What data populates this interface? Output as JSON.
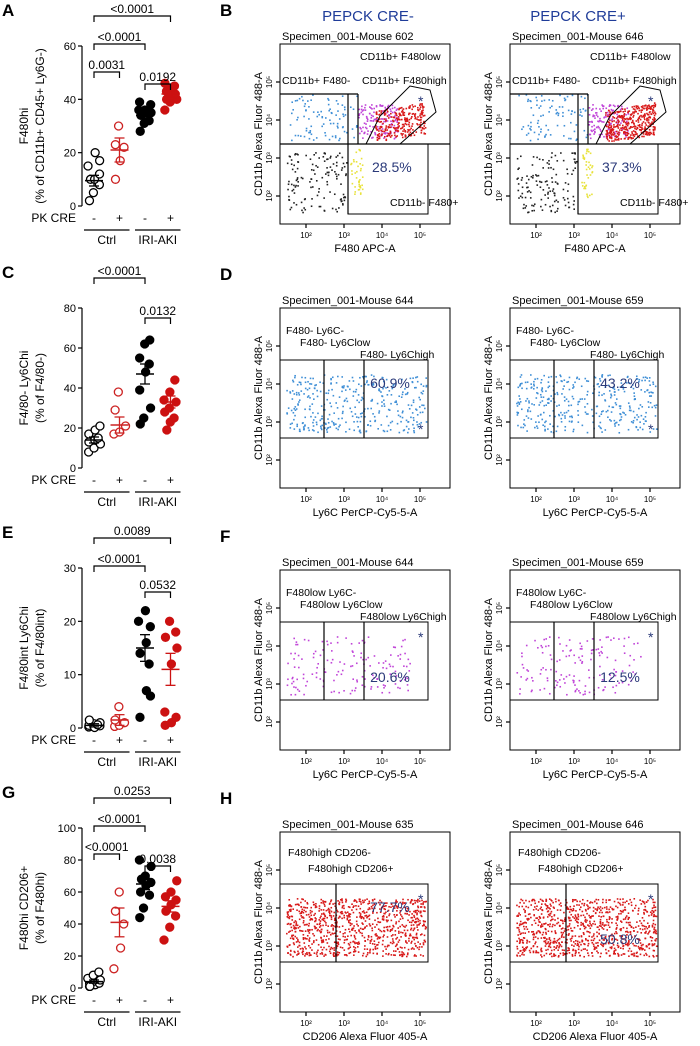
{
  "chart_data": [
    {
      "type": "scatter",
      "panel": "A",
      "ylabel_line1": "F480hi",
      "ylabel_line2": "(% of CD11b+ CD45+ Ly6G-)",
      "ylim": [
        0,
        60
      ],
      "yticks": [
        "0",
        "20",
        "40",
        "60"
      ],
      "yticks_values": [
        0,
        20,
        40,
        60
      ],
      "row_label": "PK CRE",
      "signs": [
        "-",
        "+",
        "-",
        "+"
      ],
      "groups": [
        "Ctrl",
        "IRI-AKI"
      ],
      "brackets": [
        {
          "from": 0,
          "to": 3,
          "label": "<0.0001"
        },
        {
          "from": 0,
          "to": 2,
          "label": "<0.0001"
        },
        {
          "from": 0,
          "to": 1,
          "label": "0.0031"
        },
        {
          "from": 2,
          "to": 3,
          "label": "0.0192"
        }
      ],
      "series": [
        {
          "values": [
            2,
            5,
            8,
            10,
            10,
            12,
            15,
            20,
            17
          ],
          "mean": 9.5,
          "sem": 2
        },
        {
          "values": [
            10,
            17,
            22,
            23,
            30
          ],
          "mean": 21,
          "sem": 4.5
        },
        {
          "values": [
            28,
            31,
            32,
            34,
            35,
            35,
            36,
            36,
            38,
            39
          ],
          "mean": 34,
          "sem": 1.2
        },
        {
          "values": [
            36,
            39,
            40,
            40,
            41,
            42,
            43,
            44,
            45,
            46
          ],
          "mean": 42,
          "sem": 1
        }
      ]
    },
    {
      "type": "scatter",
      "panel": "C",
      "ylabel_line1": "F4/80- Ly6Chi",
      "ylabel_line2": "(% of F4/80-)",
      "ylim": [
        0,
        80
      ],
      "yticks": [
        "0",
        "20",
        "40",
        "60",
        "80"
      ],
      "yticks_values": [
        0,
        20,
        40,
        60,
        80
      ],
      "row_label": "PK CRE",
      "signs": [
        "-",
        "+",
        "-",
        "+"
      ],
      "groups": [
        "Ctrl",
        "IRI-AKI"
      ],
      "brackets": [
        {
          "from": 0,
          "to": 2,
          "label": "<0.0001"
        },
        {
          "from": 2,
          "to": 3,
          "label": "0.0132"
        }
      ],
      "series": [
        {
          "values": [
            8,
            10,
            12,
            13,
            14,
            15,
            17,
            19,
            21
          ],
          "mean": 14,
          "sem": 1.5
        },
        {
          "values": [
            17,
            18,
            21,
            29,
            38
          ],
          "mean": 21.5,
          "sem": 4
        },
        {
          "values": [
            22,
            25,
            30,
            39,
            48,
            52,
            55,
            62,
            64
          ],
          "mean": 47,
          "sem": 5
        },
        {
          "values": [
            19,
            23,
            25,
            28,
            30,
            33,
            34,
            38,
            44
          ],
          "mean": 33,
          "sem": 3
        }
      ]
    },
    {
      "type": "scatter",
      "panel": "E",
      "ylabel_line1": "F4/80int Ly6Chi",
      "ylabel_line2": "(% of F4/80int)",
      "ylim": [
        0,
        30
      ],
      "yticks": [
        "0",
        "10",
        "20",
        "30"
      ],
      "yticks_values": [
        0,
        10,
        20,
        30
      ],
      "row_label": "PK CRE",
      "signs": [
        "-",
        "+",
        "-",
        "+"
      ],
      "groups": [
        "Ctrl",
        "IRI-AKI"
      ],
      "brackets": [
        {
          "from": 0,
          "to": 3,
          "label": "0.0089"
        },
        {
          "from": 0,
          "to": 2,
          "label": "<0.0001"
        },
        {
          "from": 2,
          "to": 3,
          "label": "0.0532"
        }
      ],
      "series": [
        {
          "values": [
            0.2,
            0.3,
            0.4,
            0.5,
            0.8,
            1,
            1.5,
            0.1,
            0.6
          ],
          "mean": 0.5,
          "sem": 0.3
        },
        {
          "values": [
            0.3,
            0.5,
            1,
            1.5,
            4
          ],
          "mean": 1.5,
          "sem": 1
        },
        {
          "values": [
            2,
            7,
            12,
            14,
            16,
            19,
            20,
            22,
            6
          ],
          "mean": 15,
          "sem": 2.5
        },
        {
          "values": [
            0.5,
            1,
            2,
            3,
            12,
            15,
            17,
            20,
            18
          ],
          "mean": 11,
          "sem": 3
        }
      ]
    },
    {
      "type": "scatter",
      "panel": "G",
      "ylabel_line1": "F480hi CD206+",
      "ylabel_line2": "(% of F480hi)",
      "ylim": [
        0,
        100
      ],
      "yticks": [
        "0",
        "20",
        "40",
        "60",
        "80",
        "100"
      ],
      "yticks_values": [
        0,
        20,
        40,
        60,
        80,
        100
      ],
      "row_label": "PK CRE",
      "signs": [
        "-",
        "+",
        "-",
        "+"
      ],
      "groups": [
        "Ctrl",
        "IRI-AKI"
      ],
      "brackets": [
        {
          "from": 0,
          "to": 3,
          "label": "0.0253"
        },
        {
          "from": 0,
          "to": 2,
          "label": "<0.0001"
        },
        {
          "from": 0,
          "to": 1,
          "label": "<0.0001"
        },
        {
          "from": 2,
          "to": 3,
          "label": "0.0038"
        }
      ],
      "series": [
        {
          "values": [
            1,
            2,
            3,
            3,
            4,
            5,
            6,
            8,
            10,
            1
          ],
          "mean": 4,
          "sem": 1
        },
        {
          "values": [
            12,
            25,
            40,
            48,
            60
          ],
          "mean": 41,
          "sem": 9
        },
        {
          "values": [
            44,
            50,
            58,
            60,
            64,
            66,
            68,
            70,
            76,
            80
          ],
          "mean": 65,
          "sem": 3.5
        },
        {
          "values": [
            30,
            38,
            45,
            48,
            52,
            55,
            57,
            60,
            67
          ],
          "mean": 51,
          "sem": 3.5
        }
      ]
    }
  ],
  "flow_headers": {
    "left": "PEPCK CRE-",
    "right": "PEPCK CRE+"
  },
  "flow_panels": [
    {
      "panel": "B",
      "plots": [
        {
          "specimen": "Specimen_001-Mouse 602",
          "percent": "28.5%"
        },
        {
          "specimen": "Specimen_001-Mouse 646",
          "percent": "37.3%"
        }
      ],
      "gates": [
        "CD11b+ F480low",
        "CD11b+ F480-",
        "CD11b+ F480high",
        "CD11b- F480+"
      ],
      "xlabel": "F480 APC-A",
      "ylabel": "CD11b Alexa Fluor 488-A",
      "marker": "*"
    },
    {
      "panel": "D",
      "plots": [
        {
          "specimen": "Specimen_001-Mouse 644",
          "percent": "60.9%"
        },
        {
          "specimen": "Specimen_001-Mouse 659",
          "percent": "43.2%"
        }
      ],
      "gates": [
        "F480- Ly6C-",
        "F480- Ly6Clow",
        "F480- Ly6Chigh"
      ],
      "xlabel": "Ly6C PerCP-Cy5-5-A",
      "ylabel": "CD11b Alexa Fluor 488-A",
      "marker": "*"
    },
    {
      "panel": "F",
      "plots": [
        {
          "specimen": "Specimen_001-Mouse 644",
          "percent": "20.6%"
        },
        {
          "specimen": "Specimen_001-Mouse 659",
          "percent": "12.5%"
        }
      ],
      "gates": [
        "F480low Ly6C-",
        "F480low Ly6Clow",
        "F480low Ly6Chigh"
      ],
      "xlabel": "Ly6C PerCP-Cy5-5-A",
      "ylabel": "CD11b Alexa Fluor 488-A",
      "marker": "*"
    },
    {
      "panel": "H",
      "plots": [
        {
          "specimen": "Specimen_001-Mouse 635",
          "percent": "77.7%"
        },
        {
          "specimen": "Specimen_001-Mouse 646",
          "percent": "50.8%"
        }
      ],
      "gates": [
        "F480high CD206-",
        "F480high CD206+"
      ],
      "xlabel": "CD206 Alexa Fluor 405-A",
      "ylabel": "CD11b Alexa Fluor 488-A",
      "marker": "*"
    }
  ],
  "flow_axis": {
    "x_ticks": [
      "10²",
      "10³",
      "10⁴",
      "10⁵"
    ],
    "y_ticks": [
      "10²",
      "10³",
      "10⁴",
      "10⁵"
    ]
  },
  "colors": {
    "ctrl_minus": "#000000",
    "ctrl_plus": "#cc2222",
    "aki_minus": "#000000",
    "aki_plus": "#cc1111",
    "pct_text": "#2b3a7a",
    "header": "#1f3c99",
    "blue_events": "#3f8fd6",
    "magenta_events": "#c044d8",
    "red_events": "#d81818",
    "yellow_events": "#e8e23a",
    "black_events": "#222222"
  }
}
